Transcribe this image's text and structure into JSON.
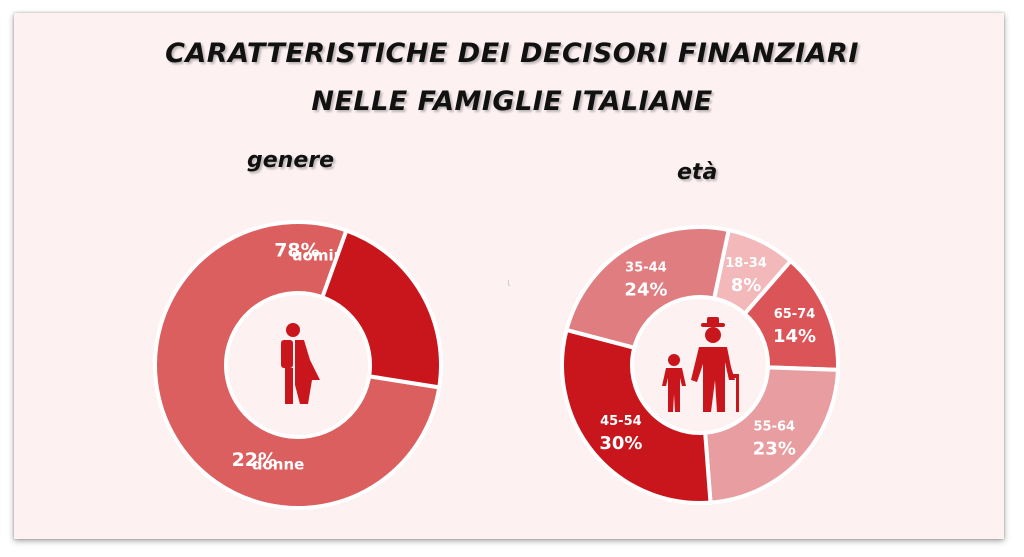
{
  "title": {
    "line1": "CARATTERISTICHE DEI DECISORI FINANZIARI",
    "line2": "NELLE FAMIGLIE ITALIANE"
  },
  "colors": {
    "background": "#fdf1f2",
    "uomini": "#dc5f5f",
    "donne": "#c9161c",
    "age_18_34": "#f2b8ba",
    "age_65_74": "#da5458",
    "age_55_64": "#e89ea0",
    "age_45_54": "#c9161c",
    "age_35_44": "#e07d80",
    "icon": "#c9161c"
  },
  "icons": {
    "genere": "man-woman-icon",
    "eta": "elderly-man-child-icon"
  },
  "chart_data": [
    {
      "type": "pie",
      "subtitle": "genere",
      "categories": [
        "uomini",
        "donne"
      ],
      "values": [
        78,
        22
      ],
      "labels": [
        "78%",
        "22%"
      ]
    },
    {
      "type": "pie",
      "subtitle": "età",
      "categories": [
        "18-34",
        "65-74",
        "55-64",
        "45-54",
        "35-44"
      ],
      "values": [
        8,
        14,
        23,
        30,
        24
      ],
      "labels": [
        "8%",
        "14%",
        "23%",
        "30%",
        "24%"
      ]
    }
  ]
}
